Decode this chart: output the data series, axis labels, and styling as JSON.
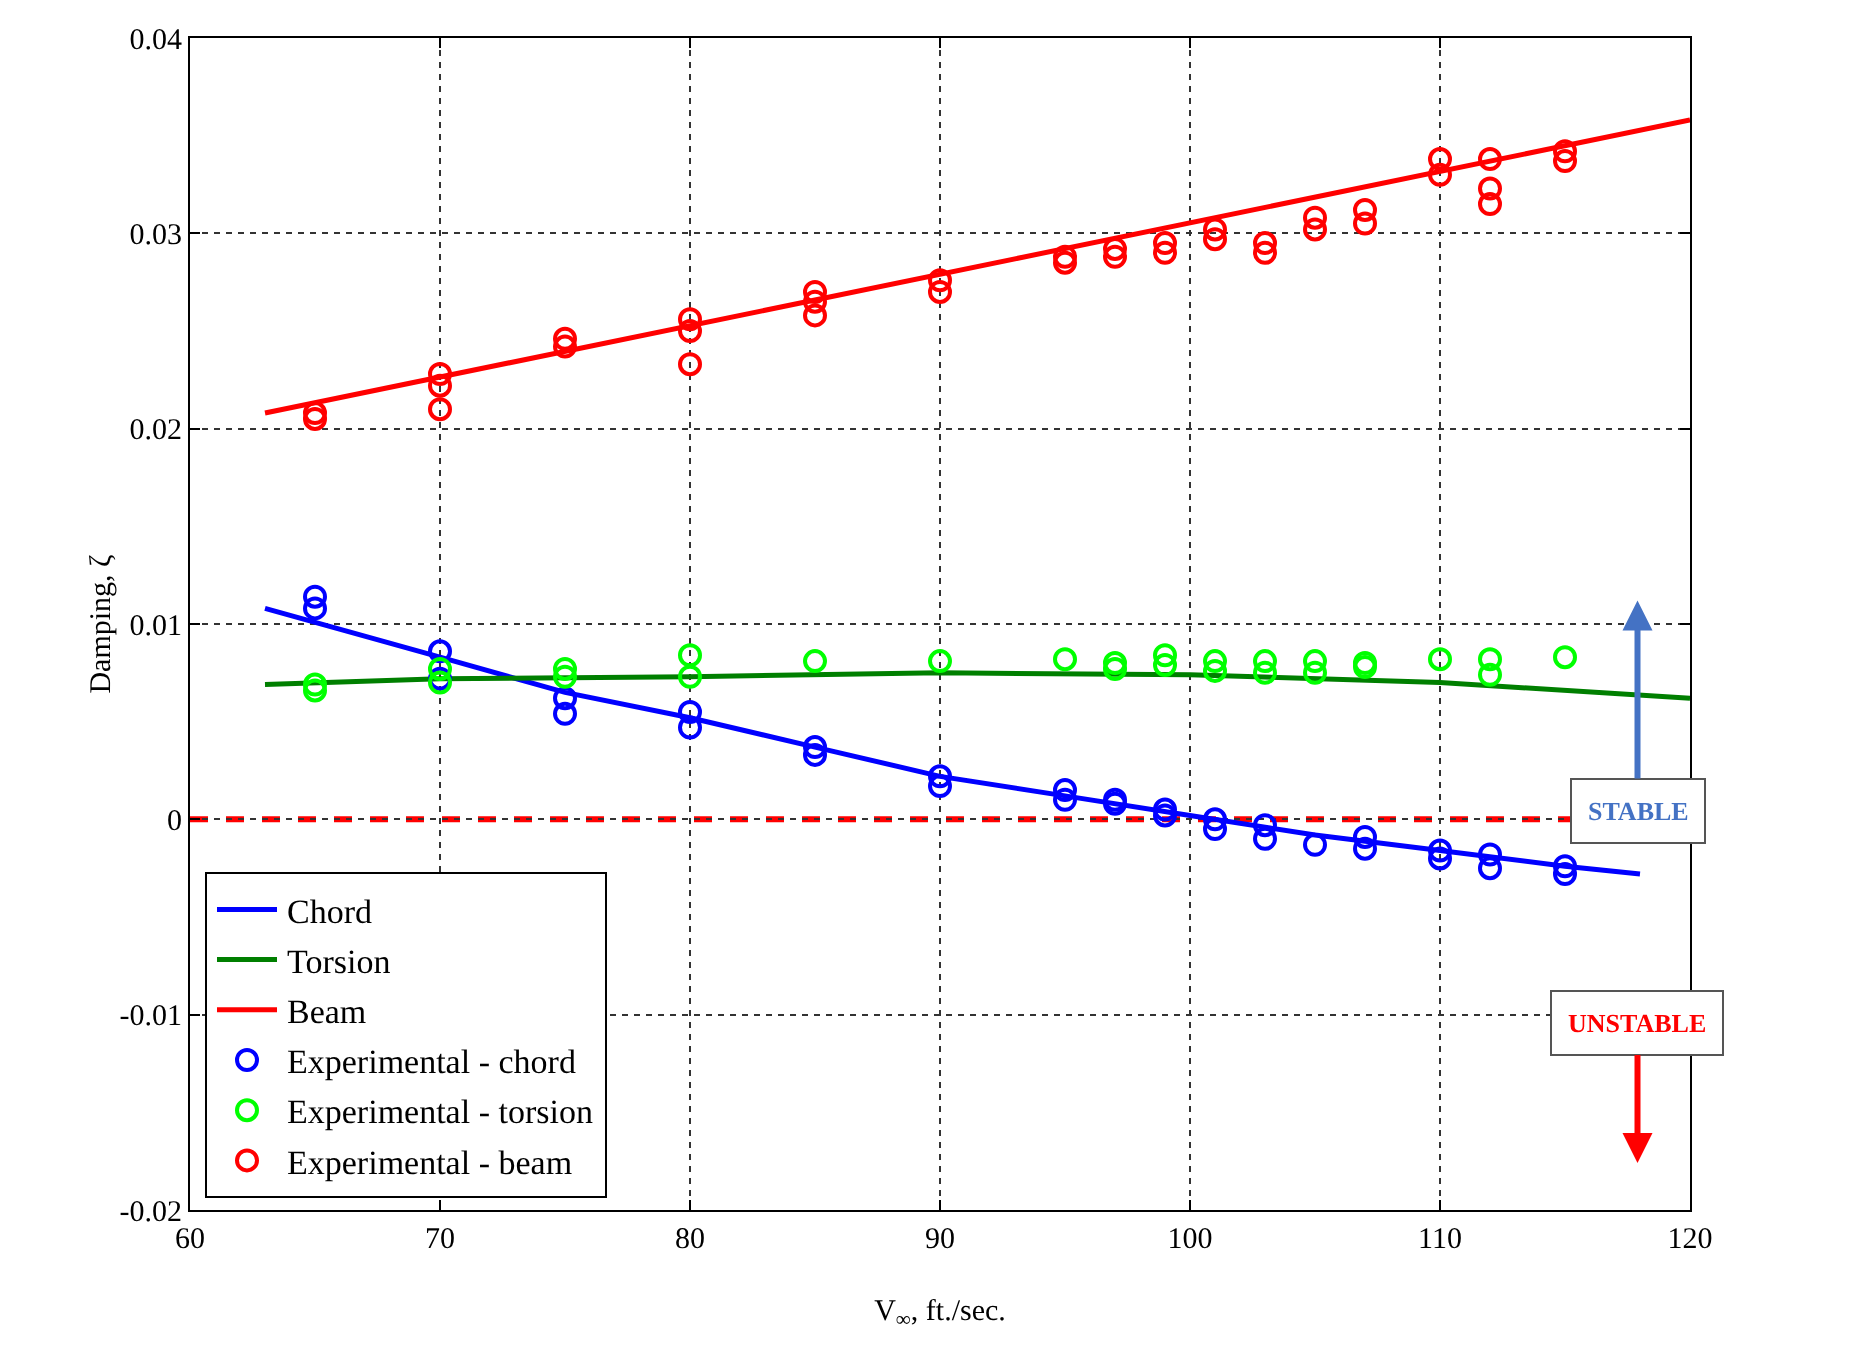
{
  "chart_data": {
    "type": "line",
    "xlabel": "V$_{∞}$, ft./sec.",
    "ylabel": "Damping, ζ",
    "xlim": [
      60,
      120
    ],
    "xticks": [
      60,
      70,
      80,
      90,
      100,
      110,
      120
    ],
    "ylim": [
      -0.02,
      0.04
    ],
    "yticks": [
      -0.02,
      -0.01,
      0,
      0.01,
      0.02,
      0.03,
      0.04
    ],
    "grid": true,
    "legend": "bottom left",
    "line_style": "solid",
    "series": [
      {
        "name": "Chord",
        "color": "#0000ff",
        "x": [
          63,
          70,
          75,
          80,
          85,
          90,
          95,
          100,
          105,
          110,
          115,
          118
        ],
        "values": [
          0.0108,
          0.0083,
          0.0065,
          0.0052,
          0.0037,
          0.0022,
          0.0012,
          0.0002,
          -0.0008,
          -0.0016,
          -0.0024,
          -0.0028
        ]
      },
      {
        "name": "Torsion",
        "color": "#007f00",
        "x": [
          63,
          70,
          80,
          90,
          100,
          110,
          120
        ],
        "values": [
          0.0069,
          0.0072,
          0.0073,
          0.0075,
          0.0074,
          0.007,
          0.0062
        ]
      },
      {
        "name": "Beam",
        "color": "#ff0000",
        "x": [
          63,
          120
        ],
        "values": [
          0.0208,
          0.0358
        ]
      },
      {
        "name": "Experimental - chord",
        "type": "scatter",
        "marker": "circle",
        "color": "#0000ff",
        "x": [
          65,
          65,
          70,
          70,
          75,
          75,
          80,
          80,
          85,
          85,
          90,
          90,
          95,
          95,
          97,
          97,
          99,
          99,
          101,
          101,
          103,
          103,
          105,
          107,
          107,
          110,
          110,
          112,
          112,
          115,
          115
        ],
        "values": [
          0.0108,
          0.0114,
          0.0072,
          0.0086,
          0.0054,
          0.0062,
          0.0047,
          0.0055,
          0.0033,
          0.0037,
          0.0017,
          0.0022,
          0.001,
          0.0015,
          0.0008,
          0.001,
          0.0002,
          0.0005,
          -0.0005,
          0,
          -0.001,
          -0.0003,
          -0.0013,
          -0.0015,
          -0.0009,
          -0.002,
          -0.0016,
          -0.0025,
          -0.0018,
          -0.0028,
          -0.0024
        ]
      },
      {
        "name": "Experimental - torsion",
        "type": "scatter",
        "marker": "circle",
        "color": "#00ff00",
        "x": [
          65,
          65,
          70,
          70,
          75,
          75,
          80,
          80,
          85,
          90,
          95,
          97,
          97,
          99,
          99,
          101,
          101,
          103,
          103,
          105,
          105,
          107,
          107,
          110,
          112,
          112,
          115
        ],
        "values": [
          0.0066,
          0.0069,
          0.007,
          0.0077,
          0.0073,
          0.0077,
          0.0073,
          0.0084,
          0.0081,
          0.0081,
          0.0082,
          0.0077,
          0.008,
          0.0079,
          0.0084,
          0.0076,
          0.0081,
          0.0075,
          0.0081,
          0.0075,
          0.0081,
          0.0078,
          0.008,
          0.0082,
          0.0074,
          0.0082,
          0.0083
        ]
      },
      {
        "name": "Experimental - beam",
        "type": "scatter",
        "marker": "circle",
        "color": "#ff0000",
        "x": [
          65,
          65,
          70,
          70,
          70,
          75,
          75,
          80,
          80,
          80,
          85,
          85,
          85,
          90,
          90,
          95,
          95,
          97,
          97,
          99,
          99,
          101,
          101,
          103,
          103,
          105,
          105,
          107,
          107,
          110,
          110,
          112,
          112,
          112,
          115,
          115
        ],
        "values": [
          0.0205,
          0.0208,
          0.021,
          0.0222,
          0.0228,
          0.0242,
          0.0246,
          0.0233,
          0.025,
          0.0256,
          0.0258,
          0.0265,
          0.027,
          0.027,
          0.0276,
          0.0285,
          0.0288,
          0.0288,
          0.0292,
          0.029,
          0.0295,
          0.0297,
          0.0302,
          0.029,
          0.0295,
          0.0302,
          0.0308,
          0.0305,
          0.0312,
          0.033,
          0.0338,
          0.0315,
          0.0323,
          0.0338,
          0.0337,
          0.0342
        ]
      }
    ],
    "ref_lines": [
      {
        "axis": "y",
        "value": 0,
        "color": "#ff0000",
        "line_style": "dashed"
      }
    ],
    "annotations": [
      "STABLE",
      "UNSTABLE"
    ]
  }
}
